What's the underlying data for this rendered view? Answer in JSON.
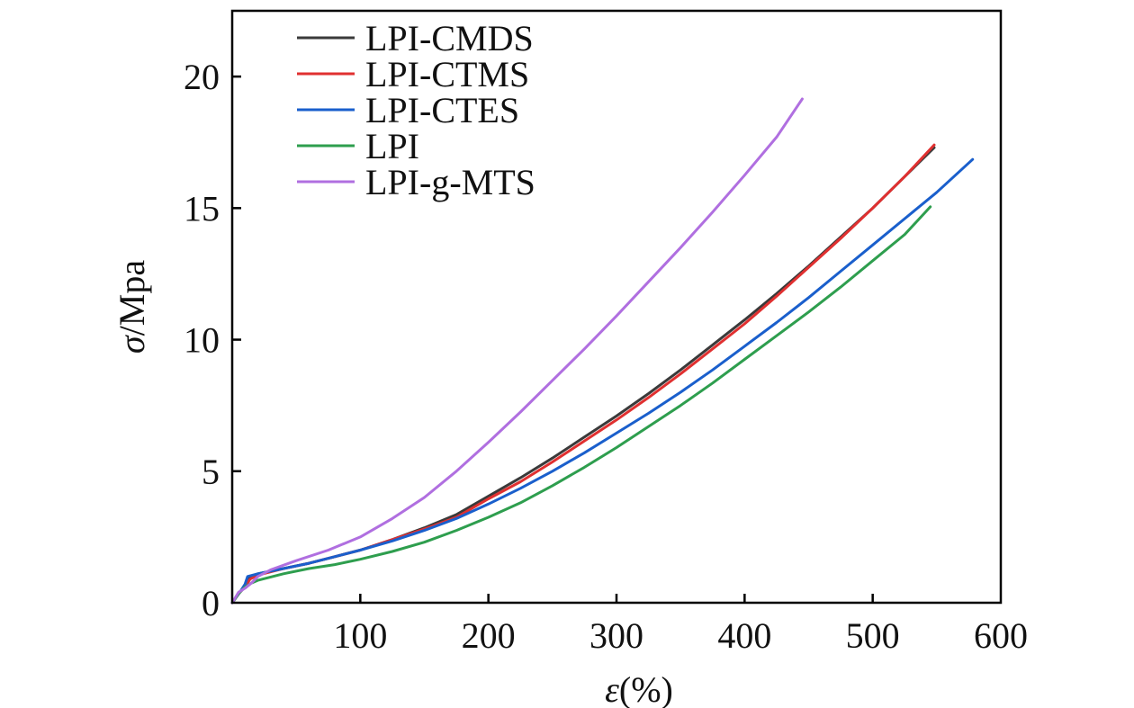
{
  "chart_data": {
    "type": "line",
    "xlabel_sym": "ε",
    "xlabel_unit": "(%)",
    "ylabel_sym": "σ",
    "ylabel_unit": "/Mpa",
    "xlim": [
      0,
      600
    ],
    "ylim": [
      0,
      22.5
    ],
    "xticks": [
      0,
      100,
      200,
      300,
      400,
      500,
      600
    ],
    "xtick_labels": [
      "",
      "100",
      "200",
      "300",
      "400",
      "500",
      "600"
    ],
    "yticks": [
      0,
      5,
      10,
      15,
      20
    ],
    "ytick_labels": [
      "0",
      "5",
      "10",
      "15",
      "20"
    ],
    "legend_position": "top-left",
    "grid": false,
    "series": [
      {
        "name": "LPI-CMDS",
        "color": "#3a3a3a",
        "points": [
          [
            0,
            0
          ],
          [
            6,
            0.4
          ],
          [
            10,
            0.6
          ],
          [
            12,
            0.95
          ],
          [
            20,
            1.1
          ],
          [
            40,
            1.3
          ],
          [
            60,
            1.5
          ],
          [
            80,
            1.75
          ],
          [
            100,
            2.0
          ],
          [
            125,
            2.4
          ],
          [
            150,
            2.85
          ],
          [
            175,
            3.35
          ],
          [
            200,
            4.05
          ],
          [
            225,
            4.75
          ],
          [
            250,
            5.5
          ],
          [
            275,
            6.3
          ],
          [
            300,
            7.1
          ],
          [
            325,
            7.95
          ],
          [
            350,
            8.85
          ],
          [
            375,
            9.8
          ],
          [
            400,
            10.75
          ],
          [
            425,
            11.75
          ],
          [
            450,
            12.8
          ],
          [
            475,
            13.9
          ],
          [
            500,
            15.0
          ],
          [
            525,
            16.2
          ],
          [
            548,
            17.3
          ]
        ]
      },
      {
        "name": "LPI-CTMS",
        "color": "#e03030",
        "points": [
          [
            0,
            0
          ],
          [
            6,
            0.4
          ],
          [
            10,
            0.6
          ],
          [
            14,
            0.9
          ],
          [
            20,
            1.05
          ],
          [
            40,
            1.3
          ],
          [
            60,
            1.5
          ],
          [
            80,
            1.75
          ],
          [
            100,
            2.0
          ],
          [
            125,
            2.4
          ],
          [
            150,
            2.8
          ],
          [
            175,
            3.25
          ],
          [
            200,
            3.95
          ],
          [
            225,
            4.6
          ],
          [
            250,
            5.35
          ],
          [
            275,
            6.15
          ],
          [
            300,
            6.95
          ],
          [
            325,
            7.8
          ],
          [
            350,
            8.7
          ],
          [
            375,
            9.65
          ],
          [
            400,
            10.6
          ],
          [
            425,
            11.65
          ],
          [
            450,
            12.75
          ],
          [
            475,
            13.85
          ],
          [
            500,
            15.0
          ],
          [
            525,
            16.2
          ],
          [
            548,
            17.4
          ]
        ]
      },
      {
        "name": "LPI-CTES",
        "color": "#1a5fcc",
        "points": [
          [
            0,
            0
          ],
          [
            6,
            0.4
          ],
          [
            10,
            0.7
          ],
          [
            12,
            1.0
          ],
          [
            20,
            1.1
          ],
          [
            40,
            1.3
          ],
          [
            60,
            1.5
          ],
          [
            80,
            1.75
          ],
          [
            100,
            2.0
          ],
          [
            125,
            2.35
          ],
          [
            150,
            2.75
          ],
          [
            175,
            3.2
          ],
          [
            200,
            3.75
          ],
          [
            225,
            4.35
          ],
          [
            250,
            5.0
          ],
          [
            275,
            5.7
          ],
          [
            300,
            6.45
          ],
          [
            325,
            7.2
          ],
          [
            350,
            8.0
          ],
          [
            375,
            8.85
          ],
          [
            400,
            9.75
          ],
          [
            425,
            10.65
          ],
          [
            450,
            11.6
          ],
          [
            475,
            12.6
          ],
          [
            500,
            13.6
          ],
          [
            525,
            14.6
          ],
          [
            550,
            15.6
          ],
          [
            578,
            16.85
          ]
        ]
      },
      {
        "name": "LPI",
        "color": "#2e9e4e",
        "points": [
          [
            0,
            0
          ],
          [
            5,
            0.35
          ],
          [
            10,
            0.6
          ],
          [
            15,
            0.75
          ],
          [
            20,
            0.85
          ],
          [
            40,
            1.1
          ],
          [
            60,
            1.3
          ],
          [
            80,
            1.45
          ],
          [
            100,
            1.65
          ],
          [
            125,
            1.95
          ],
          [
            150,
            2.3
          ],
          [
            175,
            2.75
          ],
          [
            200,
            3.25
          ],
          [
            225,
            3.8
          ],
          [
            250,
            4.45
          ],
          [
            275,
            5.15
          ],
          [
            300,
            5.9
          ],
          [
            325,
            6.7
          ],
          [
            350,
            7.5
          ],
          [
            375,
            8.35
          ],
          [
            400,
            9.25
          ],
          [
            425,
            10.15
          ],
          [
            450,
            11.05
          ],
          [
            475,
            12.0
          ],
          [
            500,
            13.0
          ],
          [
            525,
            14.0
          ],
          [
            545,
            15.05
          ]
        ]
      },
      {
        "name": "LPI-g-MTS",
        "color": "#b06fe0",
        "points": [
          [
            0,
            0
          ],
          [
            5,
            0.4
          ],
          [
            10,
            0.55
          ],
          [
            15,
            0.75
          ],
          [
            20,
            1.0
          ],
          [
            30,
            1.25
          ],
          [
            50,
            1.6
          ],
          [
            75,
            2.0
          ],
          [
            100,
            2.5
          ],
          [
            125,
            3.2
          ],
          [
            150,
            4.0
          ],
          [
            175,
            5.0
          ],
          [
            200,
            6.1
          ],
          [
            225,
            7.25
          ],
          [
            250,
            8.45
          ],
          [
            275,
            9.65
          ],
          [
            300,
            10.9
          ],
          [
            325,
            12.2
          ],
          [
            350,
            13.5
          ],
          [
            375,
            14.85
          ],
          [
            400,
            16.25
          ],
          [
            425,
            17.7
          ],
          [
            445,
            19.15
          ]
        ]
      }
    ]
  }
}
